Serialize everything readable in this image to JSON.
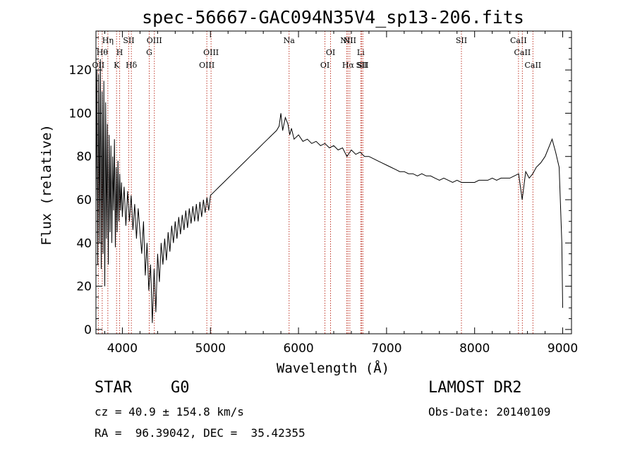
{
  "chart_data": {
    "type": "line",
    "title": "spec-56667-GAC094N35V4_sp13-206.fits",
    "xlabel": "Wavelength (Å)",
    "ylabel": "Flux (relative)",
    "xlim": [
      3700,
      9100
    ],
    "ylim": [
      -2,
      138
    ],
    "x_ticks": [
      4000,
      5000,
      6000,
      7000,
      8000,
      9000
    ],
    "y_ticks": [
      0,
      20,
      40,
      60,
      80,
      100,
      120
    ],
    "grid": false,
    "line_color": "#000000",
    "marker_color": "#c0392b",
    "series": [
      {
        "points": [
          [
            3700,
            55
          ],
          [
            3710,
            120
          ],
          [
            3720,
            30
          ],
          [
            3730,
            118
          ],
          [
            3740,
            40
          ],
          [
            3750,
            125
          ],
          [
            3760,
            28
          ],
          [
            3770,
            110
          ],
          [
            3780,
            35
          ],
          [
            3790,
            115
          ],
          [
            3800,
            20
          ],
          [
            3810,
            105
          ],
          [
            3820,
            42
          ],
          [
            3830,
            95
          ],
          [
            3840,
            30
          ],
          [
            3850,
            90
          ],
          [
            3860,
            45
          ],
          [
            3870,
            85
          ],
          [
            3880,
            40
          ],
          [
            3890,
            80
          ],
          [
            3900,
            55
          ],
          [
            3910,
            88
          ],
          [
            3920,
            38
          ],
          [
            3930,
            75
          ],
          [
            3940,
            45
          ],
          [
            3950,
            78
          ],
          [
            3960,
            50
          ],
          [
            3970,
            72
          ],
          [
            3980,
            55
          ],
          [
            3990,
            68
          ],
          [
            4000,
            52
          ],
          [
            4020,
            66
          ],
          [
            4040,
            48
          ],
          [
            4060,
            64
          ],
          [
            4080,
            50
          ],
          [
            4100,
            62
          ],
          [
            4120,
            46
          ],
          [
            4140,
            58
          ],
          [
            4160,
            42
          ],
          [
            4180,
            56
          ],
          [
            4200,
            45
          ],
          [
            4220,
            35
          ],
          [
            4240,
            50
          ],
          [
            4260,
            25
          ],
          [
            4280,
            40
          ],
          [
            4300,
            18
          ],
          [
            4320,
            30
          ],
          [
            4340,
            3
          ],
          [
            4360,
            28
          ],
          [
            4380,
            8
          ],
          [
            4400,
            35
          ],
          [
            4420,
            22
          ],
          [
            4440,
            40
          ],
          [
            4460,
            30
          ],
          [
            4480,
            42
          ],
          [
            4500,
            32
          ],
          [
            4520,
            45
          ],
          [
            4540,
            36
          ],
          [
            4560,
            48
          ],
          [
            4580,
            40
          ],
          [
            4600,
            50
          ],
          [
            4620,
            42
          ],
          [
            4640,
            52
          ],
          [
            4660,
            44
          ],
          [
            4680,
            53
          ],
          [
            4700,
            46
          ],
          [
            4720,
            55
          ],
          [
            4740,
            47
          ],
          [
            4760,
            56
          ],
          [
            4780,
            49
          ],
          [
            4800,
            57
          ],
          [
            4820,
            50
          ],
          [
            4840,
            58
          ],
          [
            4860,
            50
          ],
          [
            4880,
            59
          ],
          [
            4900,
            52
          ],
          [
            4920,
            60
          ],
          [
            4940,
            54
          ],
          [
            4960,
            61
          ],
          [
            4980,
            55
          ],
          [
            5000,
            62
          ],
          [
            5050,
            64
          ],
          [
            5100,
            66
          ],
          [
            5150,
            68
          ],
          [
            5200,
            70
          ],
          [
            5250,
            72
          ],
          [
            5300,
            74
          ],
          [
            5350,
            76
          ],
          [
            5400,
            78
          ],
          [
            5450,
            80
          ],
          [
            5500,
            82
          ],
          [
            5550,
            84
          ],
          [
            5600,
            86
          ],
          [
            5650,
            88
          ],
          [
            5700,
            90
          ],
          [
            5750,
            92
          ],
          [
            5780,
            94
          ],
          [
            5800,
            100
          ],
          [
            5820,
            92
          ],
          [
            5850,
            98
          ],
          [
            5880,
            95
          ],
          [
            5900,
            90
          ],
          [
            5920,
            93
          ],
          [
            5950,
            88
          ],
          [
            6000,
            90
          ],
          [
            6050,
            87
          ],
          [
            6100,
            88
          ],
          [
            6150,
            86
          ],
          [
            6200,
            87
          ],
          [
            6250,
            85
          ],
          [
            6300,
            86
          ],
          [
            6350,
            84
          ],
          [
            6400,
            85
          ],
          [
            6450,
            83
          ],
          [
            6500,
            84
          ],
          [
            6550,
            80
          ],
          [
            6600,
            83
          ],
          [
            6650,
            81
          ],
          [
            6700,
            82
          ],
          [
            6750,
            80
          ],
          [
            6800,
            80
          ],
          [
            6850,
            79
          ],
          [
            6900,
            78
          ],
          [
            6950,
            77
          ],
          [
            7000,
            76
          ],
          [
            7050,
            75
          ],
          [
            7100,
            74
          ],
          [
            7150,
            73
          ],
          [
            7200,
            73
          ],
          [
            7250,
            72
          ],
          [
            7300,
            72
          ],
          [
            7350,
            71
          ],
          [
            7400,
            72
          ],
          [
            7450,
            71
          ],
          [
            7500,
            71
          ],
          [
            7550,
            70
          ],
          [
            7600,
            69
          ],
          [
            7650,
            70
          ],
          [
            7700,
            69
          ],
          [
            7750,
            68
          ],
          [
            7800,
            69
          ],
          [
            7850,
            68
          ],
          [
            7900,
            68
          ],
          [
            7950,
            68
          ],
          [
            8000,
            68
          ],
          [
            8050,
            69
          ],
          [
            8100,
            69
          ],
          [
            8150,
            69
          ],
          [
            8200,
            70
          ],
          [
            8250,
            69
          ],
          [
            8300,
            70
          ],
          [
            8350,
            70
          ],
          [
            8400,
            70
          ],
          [
            8450,
            71
          ],
          [
            8500,
            72
          ],
          [
            8540,
            60
          ],
          [
            8580,
            73
          ],
          [
            8620,
            70
          ],
          [
            8660,
            72
          ],
          [
            8700,
            75
          ],
          [
            8750,
            77
          ],
          [
            8800,
            80
          ],
          [
            8850,
            85
          ],
          [
            8880,
            88
          ],
          [
            8920,
            82
          ],
          [
            8960,
            75
          ],
          [
            8990,
            40
          ],
          [
            9000,
            10
          ]
        ]
      }
    ],
    "line_markers": [
      {
        "x": 3727,
        "label": "OII",
        "row": 3
      },
      {
        "x": 3771,
        "label": "Hθ",
        "row": 2
      },
      {
        "x": 3835,
        "label": "Hη",
        "row": 1
      },
      {
        "x": 3934,
        "label": "K",
        "row": 3
      },
      {
        "x": 3969,
        "label": "H",
        "row": 2
      },
      {
        "x": 4072,
        "label": "SII",
        "row": 1
      },
      {
        "x": 4102,
        "label": "Hδ",
        "row": 3
      },
      {
        "x": 4305,
        "label": "G",
        "row": 2
      },
      {
        "x": 4363,
        "label": "OIII",
        "row": 1
      },
      {
        "x": 4959,
        "label": "OIII",
        "row": 3
      },
      {
        "x": 5007,
        "label": "OIII",
        "row": 2
      },
      {
        "x": 5893,
        "label": "Na",
        "row": 1
      },
      {
        "x": 6300,
        "label": "OI",
        "row": 3
      },
      {
        "x": 6364,
        "label": "OI",
        "row": 2
      },
      {
        "x": 6548,
        "label": "NII",
        "row": 1
      },
      {
        "x": 6563,
        "label": "Hα",
        "row": 3
      },
      {
        "x": 6583,
        "label": "NII",
        "row": 1
      },
      {
        "x": 6707,
        "label": "Li",
        "row": 2
      },
      {
        "x": 6717,
        "label": "SII",
        "row": 3
      },
      {
        "x": 6731,
        "label": "SII",
        "row": 3
      },
      {
        "x": 7850,
        "label": "SII",
        "row": 1
      },
      {
        "x": 8498,
        "label": "CaII",
        "row": 1
      },
      {
        "x": 8542,
        "label": "CaII",
        "row": 2
      },
      {
        "x": 8662,
        "label": "CaII",
        "row": 3
      }
    ]
  },
  "info": {
    "object_class": "STAR",
    "subclass": "G0",
    "survey": "LAMOST DR2",
    "redshift_line": "cz = 40.9 ± 154.8 km/s",
    "obs_date": "Obs-Date: 20140109",
    "coords": "RA =  96.39042, DEC =  35.42355"
  }
}
